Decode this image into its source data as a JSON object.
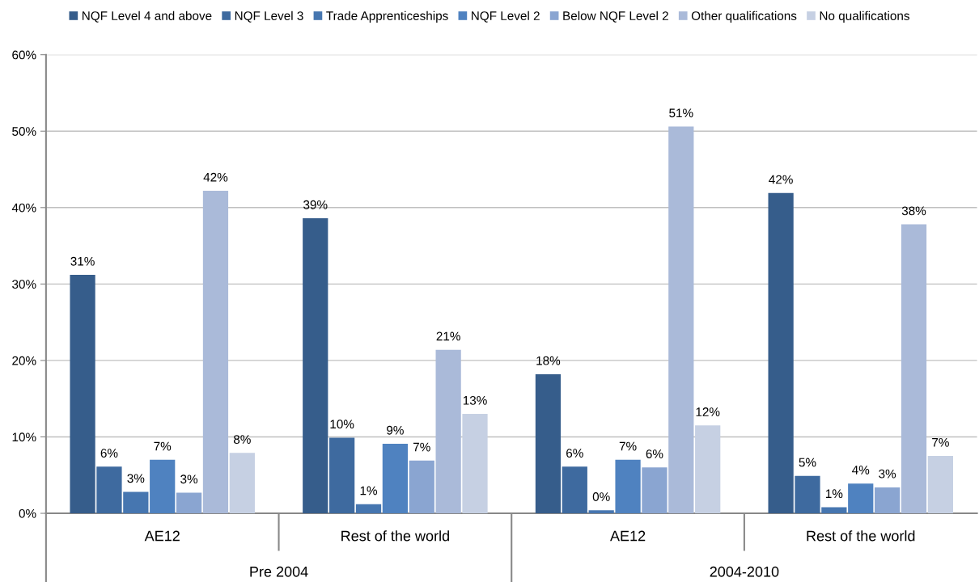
{
  "chart_data": {
    "type": "bar",
    "categories": [
      "AE12",
      "Rest of the world",
      "AE12",
      "Rest of the world"
    ],
    "annotations": [
      "Pre 2004",
      "2004-2010"
    ],
    "series": [
      {
        "name": "NQF Level 4 and above",
        "color": "#365d8b",
        "values": [
          31.2,
          38.6,
          18.2,
          41.9
        ],
        "value_labels": [
          "31%",
          "39%",
          "18%",
          "42%"
        ]
      },
      {
        "name": "NQF Level 3",
        "color": "#3e6a9f",
        "values": [
          6.1,
          9.9,
          6.1,
          4.9
        ],
        "value_labels": [
          "6%",
          "10%",
          "6%",
          "5%"
        ]
      },
      {
        "name": "Trade Apprenticeships",
        "color": "#4676b0",
        "values": [
          2.8,
          1.2,
          0.4,
          0.8
        ],
        "value_labels": [
          "3%",
          "1%",
          "0%",
          "1%"
        ]
      },
      {
        "name": "NQF Level 2",
        "color": "#4f82c0",
        "values": [
          7.0,
          9.1,
          7.0,
          3.9
        ],
        "value_labels": [
          "7%",
          "9%",
          "7%",
          "4%"
        ]
      },
      {
        "name": "Below NQF Level 2",
        "color": "#8aa5d1",
        "values": [
          2.7,
          6.9,
          6.0,
          3.4
        ],
        "value_labels": [
          "3%",
          "7%",
          "6%",
          "3%"
        ]
      },
      {
        "name": "Other qualifications",
        "color": "#aabad9",
        "values": [
          42.2,
          21.4,
          50.6,
          37.8
        ],
        "value_labels": [
          "42%",
          "21%",
          "51%",
          "38%"
        ]
      },
      {
        "name": "No qualifications",
        "color": "#c6d0e3",
        "values": [
          7.9,
          13.0,
          11.5,
          7.5
        ],
        "value_labels": [
          "8%",
          "13%",
          "12%",
          "7%"
        ]
      }
    ],
    "ylim": [
      0,
      60
    ],
    "yticks": [
      {
        "value": 0,
        "label": "0%"
      },
      {
        "value": 10,
        "label": "10%"
      },
      {
        "value": 20,
        "label": "20%"
      },
      {
        "value": 30,
        "label": "30%"
      },
      {
        "value": 40,
        "label": "40%"
      },
      {
        "value": 50,
        "label": "50%"
      },
      {
        "value": 60,
        "label": "60%"
      }
    ],
    "grid": "y",
    "legend": "top"
  }
}
